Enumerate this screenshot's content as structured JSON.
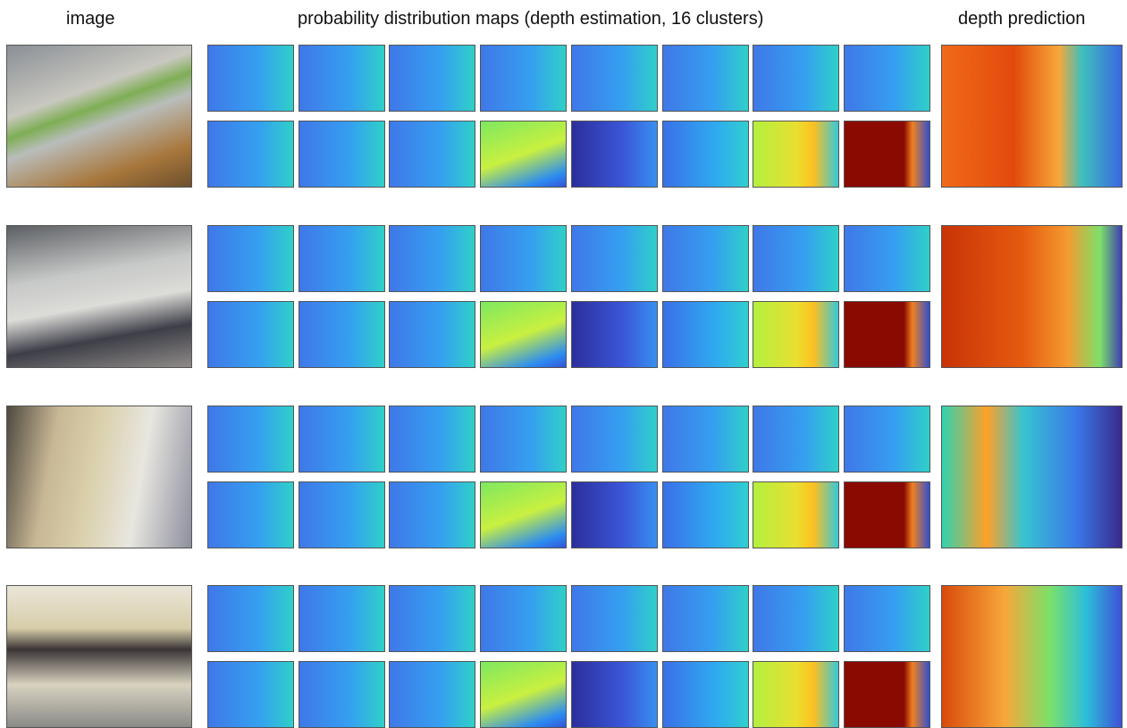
{
  "header": {
    "image": "image",
    "maps": "probability distribution maps (depth estimation, 16 clusters)",
    "prediction": "depth prediction"
  }
}
